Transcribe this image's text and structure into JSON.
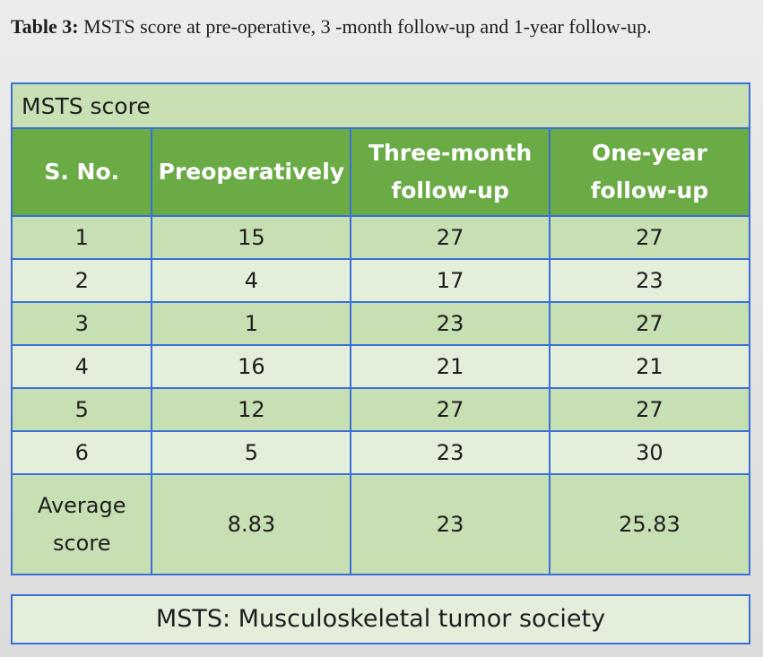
{
  "caption": {
    "label": "Table 3:",
    "text": " MSTS score at pre-operative, 3 -month follow-up and 1-year follow-up."
  },
  "table": {
    "title": "MSTS score",
    "headers": [
      "S. No.",
      "Preoperatively",
      "Three-month follow-up",
      "One-year follow-up"
    ],
    "rows": [
      [
        "1",
        "15",
        "27",
        "27"
      ],
      [
        "2",
        "4",
        "17",
        "23"
      ],
      [
        "3",
        "1",
        "23",
        "27"
      ],
      [
        "4",
        "16",
        "21",
        "21"
      ],
      [
        "5",
        "12",
        "27",
        "27"
      ],
      [
        "6",
        "5",
        "23",
        "30"
      ]
    ],
    "average": [
      "Average score",
      "8.83",
      "23",
      "25.83"
    ]
  },
  "footnote": "MSTS: Musculoskeletal tumor society",
  "colors": {
    "header_fill": "#6aab46",
    "row_dark": "#c7e0b3",
    "row_light": "#e3efdb",
    "border": "#3b6fd8"
  }
}
